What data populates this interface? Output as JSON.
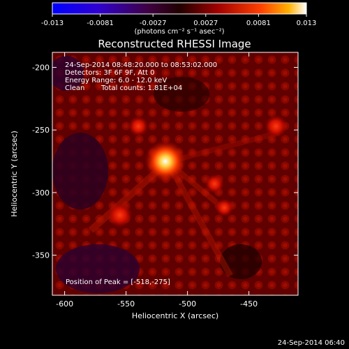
{
  "chart_data": {
    "type": "heatmap",
    "title": "Reconstructed RHESSI Image",
    "xlabel": "Heliocentric X (arcsec)",
    "ylabel": "Heliocentric Y (arcsec)",
    "xlim": [
      -610,
      -410
    ],
    "ylim": [
      -382,
      -188
    ],
    "x_ticks": [
      -600,
      -550,
      -500,
      -450
    ],
    "x_tick_labels": [
      "-600",
      "-550",
      "-500",
      "-450"
    ],
    "y_ticks": [
      -200,
      -250,
      -300,
      -350
    ],
    "y_tick_labels": [
      "-200",
      "-250",
      "-300",
      "-350"
    ],
    "colorbar": {
      "range": [
        -0.013,
        0.013
      ],
      "ticks": [
        -0.013,
        -0.0081,
        -0.0027,
        0.0027,
        0.0081,
        0.013
      ],
      "tick_labels": [
        "-0.013",
        "-0.0081",
        "-0.0027",
        "0.0027",
        "0.0081",
        "0.013"
      ],
      "unit_label": "(photons cm⁻² s⁻¹ asec⁻²)"
    },
    "annotations": {
      "time_range": "24-Sep-2014 08:48:20.000 to 08:53:02.000",
      "detectors": "Detectors: 3F 6F 9F, Att 0",
      "energy": "Energy Range: 6.0 - 12.0 keV",
      "algorithm": "Clean",
      "counts": "Total counts: 1.81E+04",
      "peak": "Position of Peak = [-518,-275]"
    },
    "sources": [
      {
        "x": -518,
        "y": -275,
        "intensity": 0.013
      },
      {
        "x": -555,
        "y": -318,
        "intensity": 0.006
      },
      {
        "x": -428,
        "y": -247,
        "intensity": 0.005
      },
      {
        "x": -540,
        "y": -247,
        "intensity": 0.004
      },
      {
        "x": -478,
        "y": -293,
        "intensity": 0.0035
      },
      {
        "x": -470,
        "y": -312,
        "intensity": 0.003
      }
    ]
  },
  "footer": {
    "timestamp": "24-Sep-2014 06:40"
  }
}
